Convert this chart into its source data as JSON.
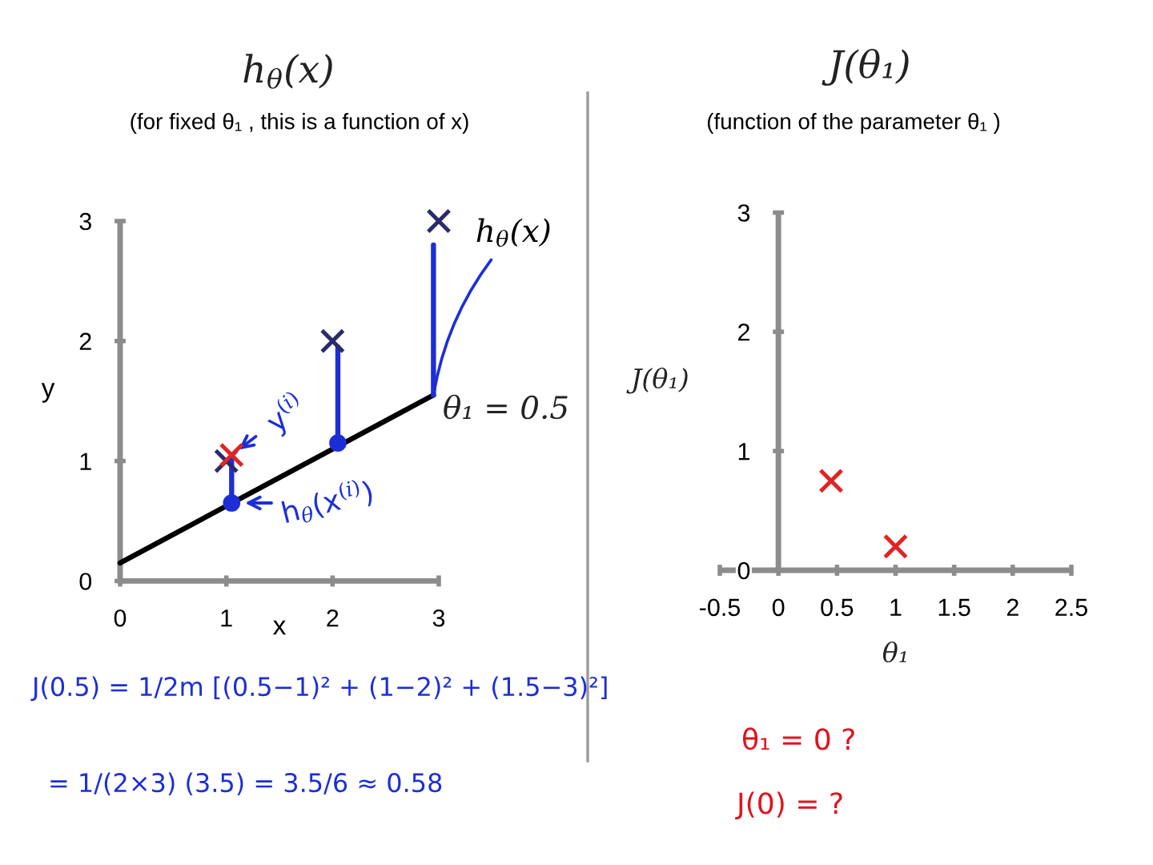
{
  "chart_data": [
    {
      "type": "scatter",
      "title": "h$_{θ}$(x)",
      "subtitle": "(for fixed θ₁ , this is a function of x)",
      "xlabel": "x",
      "ylabel": "y",
      "xlim": [
        0,
        3
      ],
      "ylim": [
        0,
        3
      ],
      "xticks": [
        0,
        1,
        2,
        3
      ],
      "yticks": [
        0,
        1,
        2,
        3
      ],
      "series": [
        {
          "type": "line",
          "name": "h$_{θ}$(x)",
          "color": "#000000",
          "x": [
            0,
            2.95
          ],
          "values": [
            0.15,
            1.55
          ]
        },
        {
          "type": "line",
          "color": "#1c2fd6",
          "x": [
            1.05,
            1.05
          ],
          "values": [
            0.65,
            1.05
          ]
        },
        {
          "type": "line",
          "color": "#1c2fd6",
          "x": [
            2.05,
            2.05
          ],
          "values": [
            1.15,
            1.95
          ]
        },
        {
          "type": "line",
          "color": "#1c2fd6",
          "x": [
            2.95,
            2.95
          ],
          "values": [
            1.55,
            2.8
          ]
        },
        {
          "type": "scatter",
          "marker": "circle",
          "color": "#1c2fd6",
          "x": [
            1.05,
            2.05
          ],
          "values": [
            0.65,
            1.15
          ]
        },
        {
          "type": "scatter",
          "marker": "cross",
          "color": "#2b2b6b",
          "x": [
            1,
            2,
            3
          ],
          "values": [
            1,
            2,
            3
          ]
        },
        {
          "type": "scatter",
          "marker": "cross",
          "color": "#e02424",
          "x": [
            1.05
          ],
          "values": [
            1.05
          ]
        }
      ],
      "annotations": [
        "θ₁ = 0.5",
        {
          "text": "y$^{(i)}$",
          "x": 1.05,
          "y": 1.05
        },
        {
          "text": "h$_{θ}$(x$^{(i)}$)",
          "x": 1.05,
          "y": 0.65
        },
        "J(0.5) = 1/2m [(0.5−1)² + (1−2)² + (1.5−3)²]",
        "= 1/(2×3) (3.5) = 3.5/6 ≈ 0.58"
      ]
    },
    {
      "type": "scatter",
      "title": "J(θ₁)",
      "subtitle": "(function of the parameter θ₁ )",
      "xlabel": "θ₁",
      "ylabel": "J(θ₁)",
      "xlim": [
        -0.5,
        2.5
      ],
      "ylim": [
        0,
        3
      ],
      "xticks": [
        -0.5,
        0,
        0.5,
        1,
        1.5,
        2,
        2.5
      ],
      "yticks": [
        0,
        1,
        2,
        3
      ],
      "marker": "cross",
      "series": [
        {
          "color": "#e02424",
          "x": [
            0.45,
            1.0
          ],
          "values": [
            0.75,
            0.2
          ]
        }
      ],
      "annotations": [
        "θ₁ = 0 ?",
        "J(0) = ?"
      ]
    }
  ]
}
